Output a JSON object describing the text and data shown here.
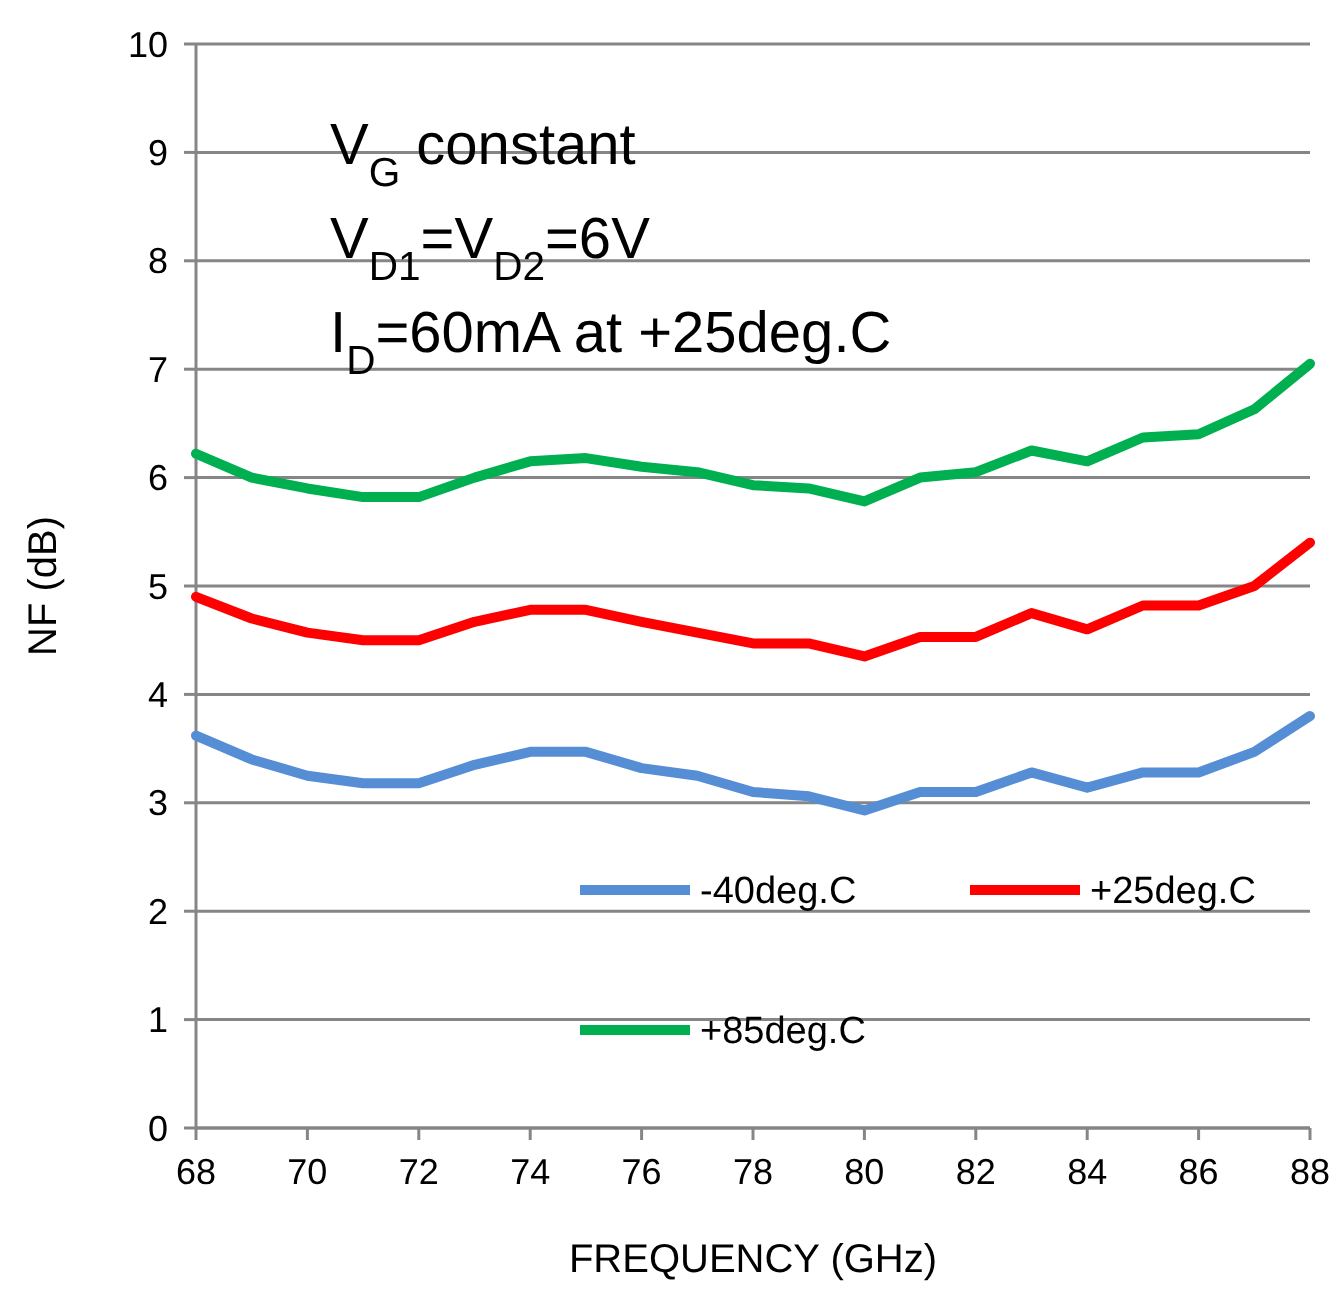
{
  "chart_data": {
    "type": "line",
    "xlabel": "FREQUENCY (GHz)",
    "ylabel": "NF (dB)",
    "x": [
      68,
      69,
      70,
      71,
      72,
      73,
      74,
      75,
      76,
      77,
      78,
      79,
      80,
      81,
      82,
      83,
      84,
      85,
      86,
      87,
      88
    ],
    "xlim": [
      68,
      88
    ],
    "xticks": [
      68,
      70,
      72,
      74,
      76,
      78,
      80,
      82,
      84,
      86,
      88
    ],
    "ylim": [
      0,
      10
    ],
    "yticks": [
      0,
      1,
      2,
      3,
      4,
      5,
      6,
      7,
      8,
      9,
      10
    ],
    "grid": "y",
    "legend": "bottom right",
    "line_style": "solid",
    "annotations": [
      "V$_{G}$ constant",
      "V$_{D1}$=V$_{D2}$=6V",
      "I$_{D}$=60mA at +25deg.C"
    ],
    "series": [
      {
        "name": "-40deg.C",
        "color": "#558ed5",
        "values": [
          3.62,
          3.4,
          3.25,
          3.18,
          3.18,
          3.35,
          3.47,
          3.47,
          3.32,
          3.25,
          3.1,
          3.06,
          2.93,
          3.1,
          3.1,
          3.28,
          3.14,
          3.28,
          3.28,
          3.47,
          3.8
        ]
      },
      {
        "name": "+25deg.C",
        "color": "#ff0000",
        "values": [
          4.9,
          4.7,
          4.57,
          4.5,
          4.5,
          4.67,
          4.78,
          4.78,
          4.67,
          4.57,
          4.47,
          4.47,
          4.35,
          4.53,
          4.53,
          4.75,
          4.6,
          4.82,
          4.82,
          5.0,
          5.4
        ]
      },
      {
        "name": "+85deg.C",
        "color": "#00b050",
        "values": [
          6.22,
          6.0,
          5.9,
          5.82,
          5.82,
          6.0,
          6.15,
          6.18,
          6.1,
          6.05,
          5.93,
          5.9,
          5.78,
          6.0,
          6.05,
          6.25,
          6.15,
          6.37,
          6.4,
          6.63,
          7.05
        ]
      }
    ]
  }
}
